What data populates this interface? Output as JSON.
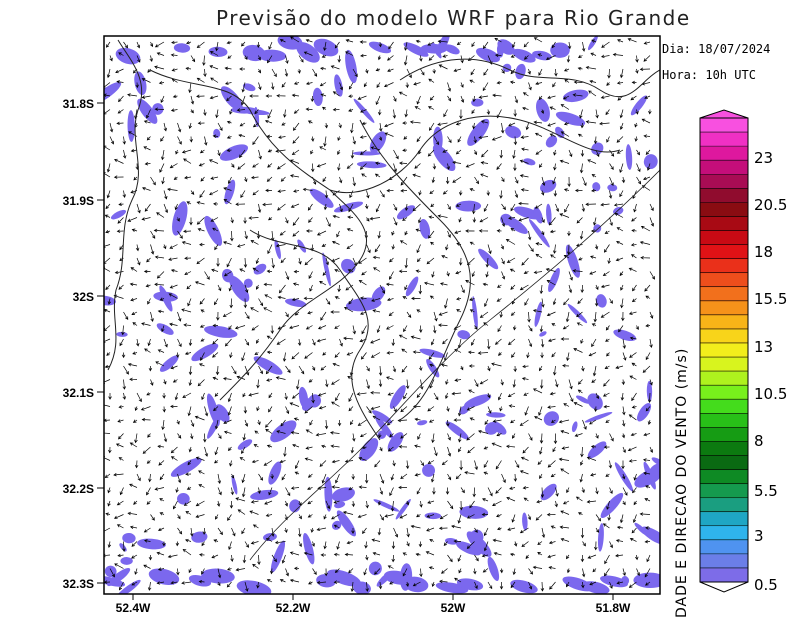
{
  "title": "Previsão do modelo WRF para Rio Grande",
  "date_label": "Dia: 18/07/2024",
  "hour_label": "Hora: 10h UTC",
  "colorbar": {
    "axis_label": "DADE E DIRECAO DO VENTO (m/s)",
    "labels": [
      "0.5",
      "3",
      "5.5",
      "8",
      "10.5",
      "13",
      "15.5",
      "18",
      "20.5",
      "23"
    ],
    "colors": [
      "#7d6ce8",
      "#6b7ee8",
      "#4f93f0",
      "#2fb4ec",
      "#1fa6c4",
      "#1a9e80",
      "#159a4e",
      "#0e8a24",
      "#0a6a12",
      "#0c7a10",
      "#169c14",
      "#28c018",
      "#44dc1c",
      "#78f01c",
      "#aef21e",
      "#d8f41e",
      "#f2ee1c",
      "#f8d41a",
      "#f8b418",
      "#f6921a",
      "#f2701c",
      "#ee4e1c",
      "#ea301a",
      "#e01216",
      "#c80a14",
      "#a80a14",
      "#8a0c12",
      "#900c2e",
      "#a80c54",
      "#c40e7a",
      "#de189e",
      "#f030c4",
      "#f850e0"
    ]
  },
  "map": {
    "lat_ticks": [
      "31.8S",
      "31.9S",
      "32S",
      "32.1S",
      "32.2S",
      "32.3S"
    ],
    "lon_ticks": [
      "52.4W",
      "52.2W",
      "52W",
      "51.8W"
    ],
    "legend_min_speed": 0.5,
    "highlight_color": "#7b68ee"
  }
}
